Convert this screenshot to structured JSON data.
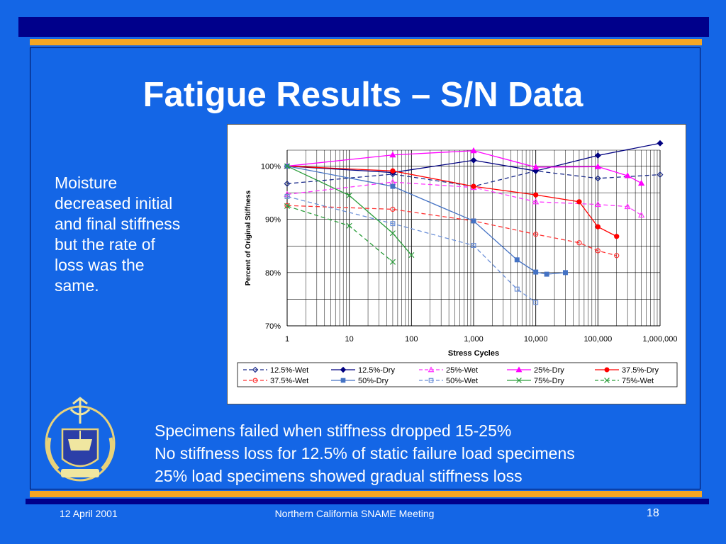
{
  "title": "Fatigue Results – S/N Data",
  "side_text": [
    "Moisture",
    "decreased initial",
    "and final stiffness",
    "but the rate of",
    "loss was the",
    "same."
  ],
  "bullets": [
    "Specimens failed when stiffness dropped 15-25%",
    "No stiffness loss for 12.5% of static failure load specimens",
    "25% load specimens showed gradual stiffness loss"
  ],
  "footer": {
    "date": "12 April 2001",
    "meeting": "Northern California SNAME Meeting",
    "page": "18"
  },
  "colors": {
    "background": "#1466e6",
    "bar": "#00008b",
    "stripe": "#f5a623"
  },
  "chart_data": {
    "type": "line",
    "xlabel": "Stress Cycles",
    "ylabel": "Percent of Original Stiffness",
    "xscale": "log",
    "xlim": [
      1,
      1000000
    ],
    "ylim": [
      70,
      103
    ],
    "xticks": [
      1,
      10,
      100,
      1000,
      10000,
      100000,
      1000000
    ],
    "xtick_labels": [
      "1",
      "10",
      "100",
      "1,000",
      "10,000",
      "100,000",
      "1,000,000"
    ],
    "yticks": [
      70,
      80,
      90,
      100
    ],
    "ytick_labels": [
      "70%",
      "80%",
      "90%",
      "100%"
    ],
    "grid": true,
    "legend_position": "bottom",
    "series": [
      {
        "name": "12.5%-Wet",
        "color": "#1a2a8a",
        "dash": true,
        "marker": "diamond",
        "filled": false,
        "x": [
          1,
          50,
          1000,
          10000,
          100000,
          1000000
        ],
        "y": [
          96.7,
          98.5,
          96.2,
          99.1,
          97.7,
          98.4
        ]
      },
      {
        "name": "12.5%-Dry",
        "color": "#000080",
        "dash": false,
        "marker": "diamond",
        "filled": true,
        "x": [
          1,
          50,
          1000,
          10000,
          100000,
          1000000
        ],
        "y": [
          100,
          98.8,
          101.1,
          99.1,
          102,
          104.3
        ]
      },
      {
        "name": "25%-Wet",
        "color": "#ff33ff",
        "dash": true,
        "marker": "triangle",
        "filled": false,
        "x": [
          1,
          50,
          1000,
          10000,
          100000,
          300000,
          500000
        ],
        "y": [
          94.7,
          97,
          96,
          93.3,
          92.8,
          92.4,
          90.8
        ]
      },
      {
        "name": "25%-Dry",
        "color": "#ff00ff",
        "dash": false,
        "marker": "triangle",
        "filled": true,
        "x": [
          1,
          50,
          1000,
          10000,
          100000,
          300000,
          500000
        ],
        "y": [
          100,
          102.1,
          102.9,
          99.8,
          99.9,
          98.2,
          96.8
        ]
      },
      {
        "name": "37.5%-Dry",
        "color": "#ff0000",
        "dash": false,
        "marker": "circle",
        "filled": true,
        "x": [
          1,
          50,
          1000,
          10000,
          50000,
          100000,
          200000
        ],
        "y": [
          100,
          99.1,
          96.2,
          94.6,
          93.3,
          88.6,
          86.8
        ]
      },
      {
        "name": "37.5%-Wet",
        "color": "#ff3333",
        "dash": true,
        "marker": "circle",
        "filled": false,
        "x": [
          1,
          50,
          1000,
          10000,
          50000,
          100000,
          200000
        ],
        "y": [
          92.6,
          91.9,
          89.7,
          87.2,
          85.6,
          84.1,
          83.2
        ]
      },
      {
        "name": "50%-Dry",
        "color": "#4472c4",
        "dash": false,
        "marker": "square",
        "filled": true,
        "x": [
          1,
          50,
          1000,
          5000,
          10000,
          15000,
          30000
        ],
        "y": [
          100,
          96.2,
          89.7,
          82.4,
          80.1,
          79.7,
          80
        ]
      },
      {
        "name": "50%-Wet",
        "color": "#6a8fd8",
        "dash": true,
        "marker": "square",
        "filled": false,
        "x": [
          1,
          50,
          1000,
          5000,
          10000
        ],
        "y": [
          94.3,
          89.2,
          85.1,
          76.9,
          74.4
        ]
      },
      {
        "name": "75%-Dry",
        "color": "#2a9d3a",
        "dash": false,
        "marker": "x",
        "filled": false,
        "x": [
          1,
          10,
          50,
          100
        ],
        "y": [
          100,
          94.5,
          87.4,
          83.3
        ]
      },
      {
        "name": "75%-Wet",
        "color": "#2a9d3a",
        "dash": true,
        "marker": "x",
        "filled": false,
        "x": [
          1,
          10,
          50
        ],
        "y": [
          92.5,
          88.8,
          82
        ]
      }
    ],
    "legend_order": [
      "12.5%-Wet",
      "12.5%-Dry",
      "25%-Wet",
      "25%-Dry",
      "37.5%-Dry",
      "37.5%-Wet",
      "50%-Dry",
      "50%-Wet",
      "75%-Dry",
      "75%-Wet"
    ]
  }
}
